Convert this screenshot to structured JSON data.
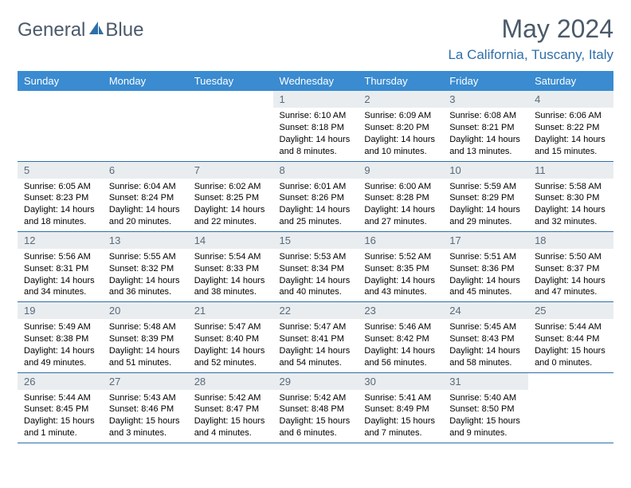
{
  "logo": {
    "text1": "General",
    "text2": "Blue"
  },
  "header": {
    "month": "May 2024",
    "location": "La California, Tuscany, Italy"
  },
  "colors": {
    "header_bg": "#3a8bd0",
    "border": "#2f6fa8",
    "daynum_bg": "#e9edf0",
    "title": "#4a5a6a",
    "location": "#2f6fa8"
  },
  "weekdays": [
    "Sunday",
    "Monday",
    "Tuesday",
    "Wednesday",
    "Thursday",
    "Friday",
    "Saturday"
  ],
  "weeks": [
    [
      {
        "n": "",
        "empty": true
      },
      {
        "n": "",
        "empty": true
      },
      {
        "n": "",
        "empty": true
      },
      {
        "n": "1",
        "sunrise": "6:10 AM",
        "sunset": "8:18 PM",
        "daylight": "14 hours and 8 minutes."
      },
      {
        "n": "2",
        "sunrise": "6:09 AM",
        "sunset": "8:20 PM",
        "daylight": "14 hours and 10 minutes."
      },
      {
        "n": "3",
        "sunrise": "6:08 AM",
        "sunset": "8:21 PM",
        "daylight": "14 hours and 13 minutes."
      },
      {
        "n": "4",
        "sunrise": "6:06 AM",
        "sunset": "8:22 PM",
        "daylight": "14 hours and 15 minutes."
      }
    ],
    [
      {
        "n": "5",
        "sunrise": "6:05 AM",
        "sunset": "8:23 PM",
        "daylight": "14 hours and 18 minutes."
      },
      {
        "n": "6",
        "sunrise": "6:04 AM",
        "sunset": "8:24 PM",
        "daylight": "14 hours and 20 minutes."
      },
      {
        "n": "7",
        "sunrise": "6:02 AM",
        "sunset": "8:25 PM",
        "daylight": "14 hours and 22 minutes."
      },
      {
        "n": "8",
        "sunrise": "6:01 AM",
        "sunset": "8:26 PM",
        "daylight": "14 hours and 25 minutes."
      },
      {
        "n": "9",
        "sunrise": "6:00 AM",
        "sunset": "8:28 PM",
        "daylight": "14 hours and 27 minutes."
      },
      {
        "n": "10",
        "sunrise": "5:59 AM",
        "sunset": "8:29 PM",
        "daylight": "14 hours and 29 minutes."
      },
      {
        "n": "11",
        "sunrise": "5:58 AM",
        "sunset": "8:30 PM",
        "daylight": "14 hours and 32 minutes."
      }
    ],
    [
      {
        "n": "12",
        "sunrise": "5:56 AM",
        "sunset": "8:31 PM",
        "daylight": "14 hours and 34 minutes."
      },
      {
        "n": "13",
        "sunrise": "5:55 AM",
        "sunset": "8:32 PM",
        "daylight": "14 hours and 36 minutes."
      },
      {
        "n": "14",
        "sunrise": "5:54 AM",
        "sunset": "8:33 PM",
        "daylight": "14 hours and 38 minutes."
      },
      {
        "n": "15",
        "sunrise": "5:53 AM",
        "sunset": "8:34 PM",
        "daylight": "14 hours and 40 minutes."
      },
      {
        "n": "16",
        "sunrise": "5:52 AM",
        "sunset": "8:35 PM",
        "daylight": "14 hours and 43 minutes."
      },
      {
        "n": "17",
        "sunrise": "5:51 AM",
        "sunset": "8:36 PM",
        "daylight": "14 hours and 45 minutes."
      },
      {
        "n": "18",
        "sunrise": "5:50 AM",
        "sunset": "8:37 PM",
        "daylight": "14 hours and 47 minutes."
      }
    ],
    [
      {
        "n": "19",
        "sunrise": "5:49 AM",
        "sunset": "8:38 PM",
        "daylight": "14 hours and 49 minutes."
      },
      {
        "n": "20",
        "sunrise": "5:48 AM",
        "sunset": "8:39 PM",
        "daylight": "14 hours and 51 minutes."
      },
      {
        "n": "21",
        "sunrise": "5:47 AM",
        "sunset": "8:40 PM",
        "daylight": "14 hours and 52 minutes."
      },
      {
        "n": "22",
        "sunrise": "5:47 AM",
        "sunset": "8:41 PM",
        "daylight": "14 hours and 54 minutes."
      },
      {
        "n": "23",
        "sunrise": "5:46 AM",
        "sunset": "8:42 PM",
        "daylight": "14 hours and 56 minutes."
      },
      {
        "n": "24",
        "sunrise": "5:45 AM",
        "sunset": "8:43 PM",
        "daylight": "14 hours and 58 minutes."
      },
      {
        "n": "25",
        "sunrise": "5:44 AM",
        "sunset": "8:44 PM",
        "daylight": "15 hours and 0 minutes."
      }
    ],
    [
      {
        "n": "26",
        "sunrise": "5:44 AM",
        "sunset": "8:45 PM",
        "daylight": "15 hours and 1 minute."
      },
      {
        "n": "27",
        "sunrise": "5:43 AM",
        "sunset": "8:46 PM",
        "daylight": "15 hours and 3 minutes."
      },
      {
        "n": "28",
        "sunrise": "5:42 AM",
        "sunset": "8:47 PM",
        "daylight": "15 hours and 4 minutes."
      },
      {
        "n": "29",
        "sunrise": "5:42 AM",
        "sunset": "8:48 PM",
        "daylight": "15 hours and 6 minutes."
      },
      {
        "n": "30",
        "sunrise": "5:41 AM",
        "sunset": "8:49 PM",
        "daylight": "15 hours and 7 minutes."
      },
      {
        "n": "31",
        "sunrise": "5:40 AM",
        "sunset": "8:50 PM",
        "daylight": "15 hours and 9 minutes."
      },
      {
        "n": "",
        "empty": true
      }
    ]
  ]
}
